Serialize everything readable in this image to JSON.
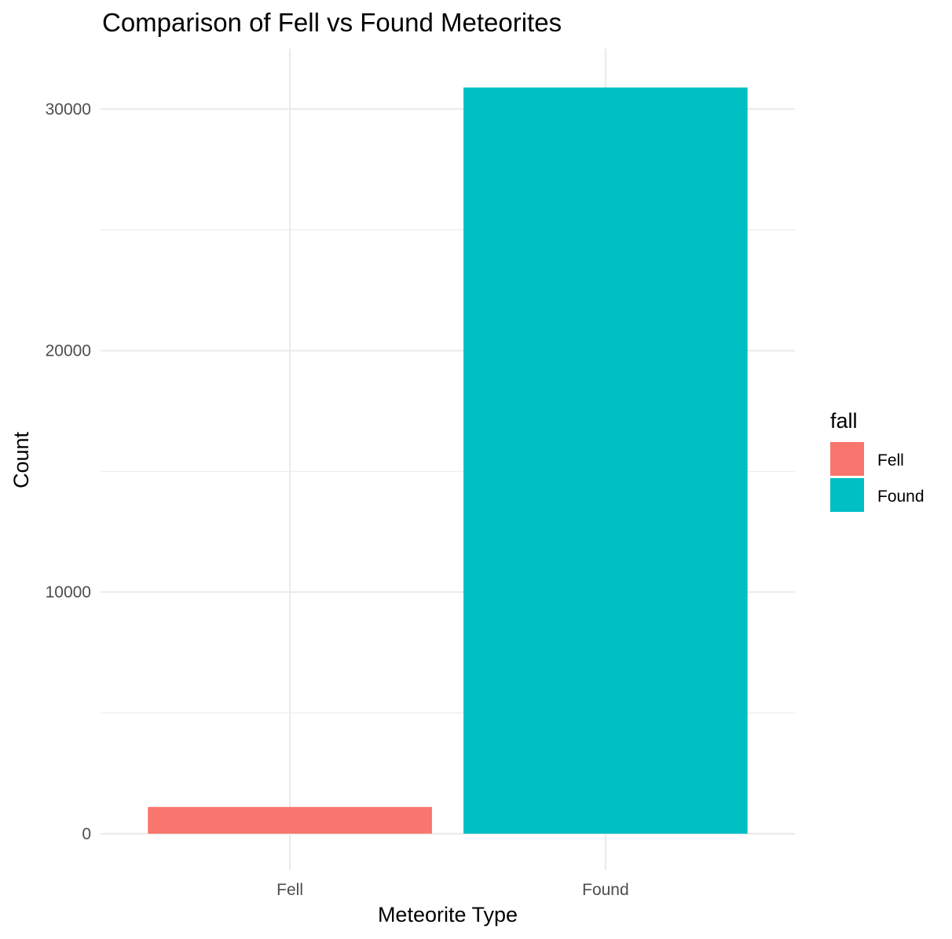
{
  "chart_data": {
    "type": "bar",
    "title": "Comparison of Fell vs Found Meteorites",
    "xlabel": "Meteorite Type",
    "ylabel": "Count",
    "categories": [
      "Fell",
      "Found"
    ],
    "values": [
      1107,
      30892
    ],
    "colors": [
      "#F8766D",
      "#00BFC4"
    ],
    "ylim": [
      -1500,
      32500
    ],
    "yticks": [
      0,
      10000,
      20000,
      30000
    ],
    "ytick_labels": [
      "0",
      "10000",
      "20000",
      "30000"
    ],
    "grid": true,
    "legend": {
      "title": "fall",
      "position": "right",
      "entries": [
        "Fell",
        "Found"
      ]
    }
  }
}
